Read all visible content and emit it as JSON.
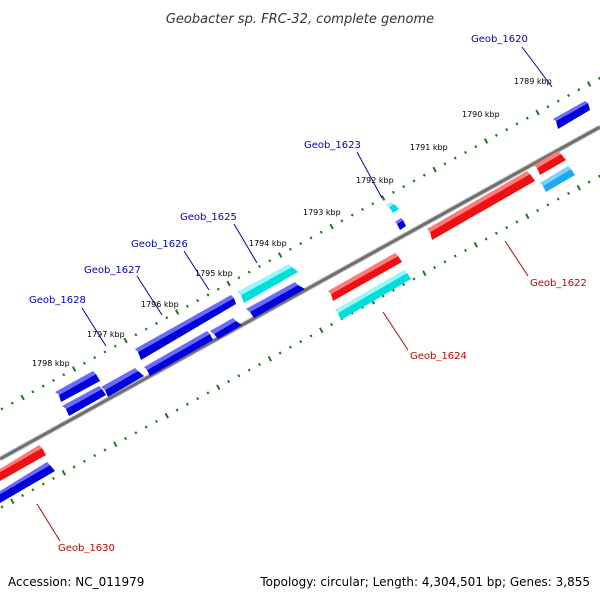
{
  "title": "Geobacter sp. FRC-32, complete genome",
  "footer": {
    "accession": "Accession: NC_011979",
    "topology": "Topology: circular; Length: 4,304,501 bp; Genes: 3,855"
  },
  "colors": {
    "backbone": "#888888",
    "tick": "#1e7a1e",
    "forward_gene": "#0000dd",
    "reverse_gene": "#ee1111",
    "rna_gene": "#00dddd",
    "label_blue": "#0000cc",
    "label_red": "#cc0000"
  },
  "scale_labels": [
    "1789 kbp",
    "1790 kbp",
    "1791 kbp",
    "1792 kbp",
    "1793 kbp",
    "1794 kbp",
    "1795 kbp",
    "1796 kbp",
    "1797 kbp",
    "1798 kbp"
  ],
  "gene_labels": {
    "geob_1620": "Geob_1620",
    "geob_1622": "Geob_1622",
    "geob_1623": "Geob_1623",
    "geob_1624": "Geob_1624",
    "geob_1625": "Geob_1625",
    "geob_1626": "Geob_1626",
    "geob_1627": "Geob_1627",
    "geob_1628": "Geob_1628",
    "geob_1630": "Geob_1630"
  }
}
